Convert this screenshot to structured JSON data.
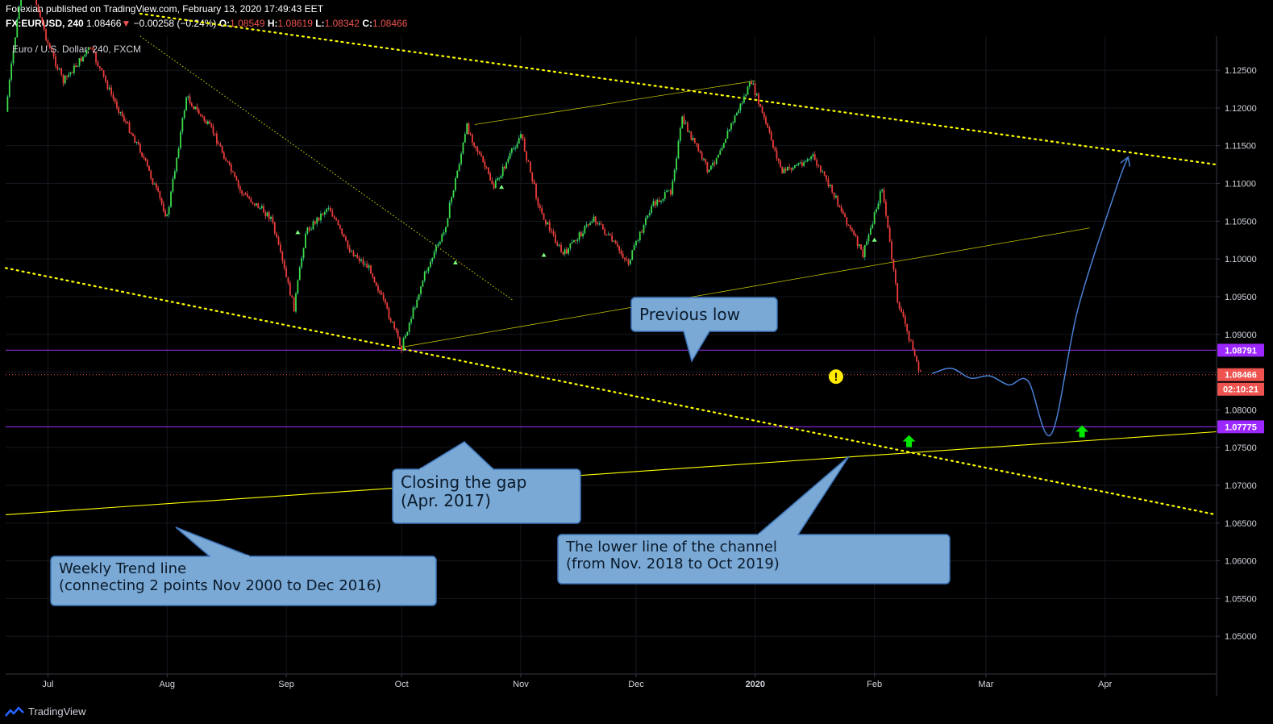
{
  "header": {
    "line1": "Forexian published on TradingView.com, February 13, 2020 17:49:43 EET",
    "symbol": "FX:EURUSD, 240",
    "last": "1.08466",
    "arrow": "▼",
    "change": "−0.00258 (−0.24%)",
    "o_label": "O:",
    "o": "1.08549",
    "h_label": "H:",
    "h": "1.08619",
    "l_label": "L:",
    "l": "1.08342",
    "c_label": "C:",
    "c": "1.08466"
  },
  "colors": {
    "background": "#000000",
    "up": "#26a69a",
    "down": "#ef5350",
    "trend": "#ffff00",
    "level": "#8a2be2",
    "callout_fill": "#7aa9d6",
    "callout_stroke": "#3d74b8",
    "projection": "#4a7fd4"
  },
  "chart_data": {
    "type": "line",
    "title": "Euro / U.S. Dollar, 240, FXCM",
    "ylim": [
      1.045,
      1.1295
    ],
    "y_ticks": [
      1.05,
      1.055,
      1.06,
      1.065,
      1.07,
      1.075,
      1.08,
      1.085,
      1.09,
      1.095,
      1.1,
      1.105,
      1.11,
      1.115,
      1.12,
      1.125
    ],
    "y_tick_labels": [
      "1.05000",
      "1.05500",
      "1.06000",
      "1.06500",
      "1.07000",
      "1.07500",
      "1.08000",
      "1.08500",
      "1.09000",
      "1.09500",
      "1.10000",
      "1.10500",
      "1.11000",
      "1.11500",
      "1.12000",
      "1.12500"
    ],
    "x_range": [
      "2019-06-20",
      "2020-04-30"
    ],
    "x_ticks": [
      "2019-07-01",
      "2019-08-01",
      "2019-09-01",
      "2019-10-01",
      "2019-11-01",
      "2019-12-01",
      "2020-01-01",
      "2020-02-01",
      "2020-03-01",
      "2020-04-01"
    ],
    "x_tick_labels": [
      "Jul",
      "Aug",
      "Sep",
      "Oct",
      "Nov",
      "Dec",
      "2020",
      "Feb",
      "Mar",
      "Apr"
    ],
    "series": [
      {
        "x": [
          "2019-06-20",
          "2019-06-25",
          "2019-07-01",
          "2019-07-05",
          "2019-07-12",
          "2019-07-18",
          "2019-07-25",
          "2019-08-01",
          "2019-08-06",
          "2019-08-13",
          "2019-08-20",
          "2019-08-28",
          "2019-09-03",
          "2019-09-06",
          "2019-09-12",
          "2019-09-17",
          "2019-09-23",
          "2019-10-01",
          "2019-10-07",
          "2019-10-12",
          "2019-10-18",
          "2019-10-25",
          "2019-11-01",
          "2019-11-06",
          "2019-11-12",
          "2019-11-20",
          "2019-11-29",
          "2019-12-05",
          "2019-12-10",
          "2019-12-13",
          "2019-12-20",
          "2019-12-31",
          "2020-01-08",
          "2020-01-16",
          "2020-01-22",
          "2020-01-29",
          "2020-02-03",
          "2020-02-07",
          "2020-02-13"
        ],
        "values": [
          1.1195,
          1.1395,
          1.1285,
          1.1235,
          1.128,
          1.1212,
          1.1145,
          1.1055,
          1.1215,
          1.1168,
          1.109,
          1.1055,
          1.0935,
          1.1035,
          1.107,
          1.1015,
          1.0985,
          1.0883,
          1.098,
          1.1035,
          1.1175,
          1.1095,
          1.1165,
          1.1065,
          1.1005,
          1.1055,
          1.0995,
          1.107,
          1.109,
          1.1185,
          1.1115,
          1.1235,
          1.1115,
          1.1135,
          1.108,
          1.1005,
          1.1095,
          1.0945,
          1.0847
        ]
      }
    ],
    "levels": [
      {
        "value": 1.08791,
        "label": "1.08791"
      },
      {
        "value": 1.07775,
        "label": "1.07775"
      }
    ],
    "last_price": {
      "value": 1.08466,
      "label": "1.08466",
      "countdown": "02:10:21"
    },
    "trendlines": [
      {
        "style": "dotted",
        "from": [
          "2019-06-20",
          1.0988
        ],
        "to": [
          "2020-04-30",
          1.0661
        ]
      },
      {
        "style": "dotted",
        "from": [
          "2019-07-25",
          1.1325
        ],
        "to": [
          "2020-04-30",
          1.1125
        ]
      },
      {
        "style": "dotted-thin",
        "from": [
          "2019-07-25",
          1.1295
        ],
        "to": [
          "2019-10-30",
          1.0945
        ]
      },
      {
        "style": "thin",
        "from": [
          "2019-10-01",
          1.0883
        ],
        "to": [
          "2020-03-28",
          1.1041
        ]
      },
      {
        "style": "thin",
        "from": [
          "2019-10-20",
          1.1178
        ],
        "to": [
          "2020-01-01",
          1.1236
        ]
      },
      {
        "style": "solid",
        "from": [
          "2019-06-20",
          1.0661
        ],
        "to": [
          "2020-04-30",
          1.0771
        ]
      }
    ],
    "projection": [
      [
        "2020-02-16",
        1.0848
      ],
      [
        "2020-02-21",
        1.0855
      ],
      [
        "2020-02-26",
        1.0842
      ],
      [
        "2020-03-02",
        1.0845
      ],
      [
        "2020-03-07",
        1.0833
      ],
      [
        "2020-03-12",
        1.0838
      ],
      [
        "2020-03-18",
        1.0768
      ],
      [
        "2020-03-25",
        1.0935
      ],
      [
        "2020-04-04",
        1.1095
      ],
      [
        "2020-04-07",
        1.1135
      ]
    ],
    "annotations": [
      {
        "text": [
          "Previous low"
        ]
      },
      {
        "text": [
          "Closing the gap",
          "(Apr. 2017)"
        ]
      },
      {
        "text": [
          "The lower line of the channel",
          "(from Nov. 2018 to Oct 2019)"
        ]
      },
      {
        "text": [
          "Weekly Trend line",
          "(connecting 2 points Nov 2000 to Dec 2016)"
        ]
      }
    ]
  },
  "footer": {
    "brand": "TradingView"
  }
}
